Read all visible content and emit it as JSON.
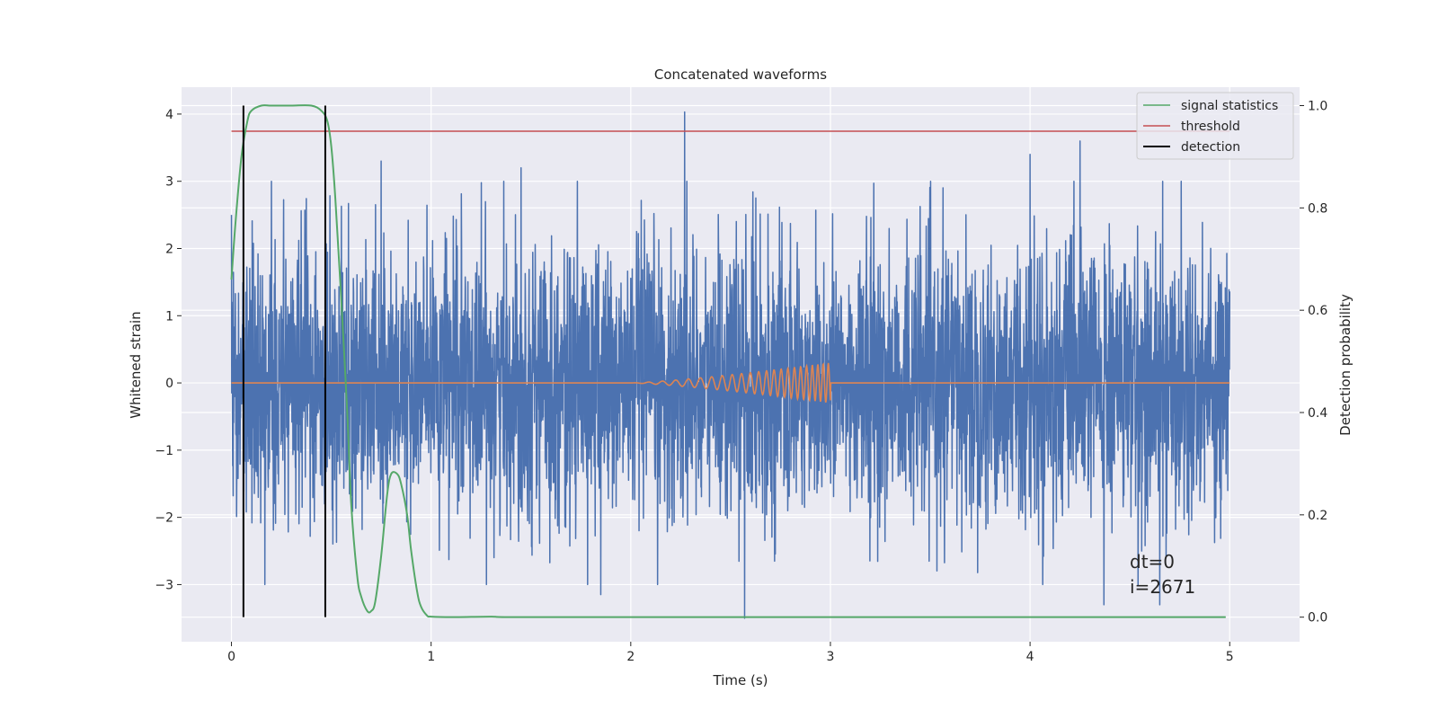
{
  "chart_data": {
    "type": "line",
    "title": "Concatenated waveforms",
    "xlabel": "Time (s)",
    "ylabel": "Whitened strain",
    "ylabel_right": "Detection probability",
    "xlim": [
      -0.25,
      5.35
    ],
    "ylim": [
      -3.85,
      4.4
    ],
    "ylim_right": [
      -0.048,
      1.036
    ],
    "x_ticks": [
      0,
      1,
      2,
      3,
      4,
      5
    ],
    "x_tick_labels": [
      "0",
      "1",
      "2",
      "3",
      "4",
      "5"
    ],
    "y_ticks": [
      -3,
      -2,
      -1,
      0,
      1,
      2,
      3,
      4
    ],
    "y_tick_labels": [
      "−3",
      "−2",
      "−1",
      "0",
      "1",
      "2",
      "3",
      "4"
    ],
    "y_right_ticks": [
      0.0,
      0.2,
      0.4,
      0.6,
      0.8,
      1.0
    ],
    "y_right_tick_labels": [
      "0.0",
      "0.2",
      "0.4",
      "0.6",
      "0.8",
      "1.0"
    ],
    "grid": true,
    "legend_position": "top-right",
    "colors": {
      "background": "#eaeaf2",
      "grid": "#ffffff",
      "strain": "#4c72b0",
      "waveform": "#dd8452",
      "signal_statistics": "#55a868",
      "threshold": "#c44e52",
      "detection": "#000000"
    },
    "noisy_strain": {
      "x_range": [
        0,
        5
      ],
      "samples": 4096,
      "std": 1.0,
      "spikes": [
        {
          "x": 0.0,
          "y": 2.5
        },
        {
          "x": 0.47,
          "y": 2.55
        },
        {
          "x": 0.75,
          "y": 3.3
        },
        {
          "x": 1.45,
          "y": 3.2
        },
        {
          "x": 2.27,
          "y": 4.03
        },
        {
          "x": 2.57,
          "y": -3.5
        },
        {
          "x": 1.85,
          "y": -3.15
        },
        {
          "x": 4.25,
          "y": 3.6
        },
        {
          "x": 4.37,
          "y": -3.3
        },
        {
          "x": 4.65,
          "y": -3.3
        },
        {
          "x": 4.0,
          "y": 3.4
        }
      ]
    },
    "injected_waveform": {
      "x_start": 2.0,
      "x_end": 3.0,
      "max_amplitude": 0.3,
      "f_start_hz": 14,
      "f_end_hz": 40
    },
    "signal_statistics": {
      "name": "signal statistics",
      "x": [
        0.0,
        0.02,
        0.05,
        0.08,
        0.1,
        0.15,
        0.2,
        0.3,
        0.4,
        0.45,
        0.48,
        0.5,
        0.52,
        0.55,
        0.58,
        0.6,
        0.63,
        0.65,
        0.68,
        0.7,
        0.72,
        0.75,
        0.78,
        0.8,
        0.83,
        0.85,
        0.88,
        0.9,
        0.93,
        0.95,
        0.98,
        1.0,
        1.1,
        1.3,
        1.4,
        2.0,
        3.0,
        4.0,
        4.98
      ],
      "y": [
        0.66,
        0.77,
        0.9,
        0.97,
        0.99,
        1.0,
        1.0,
        1.0,
        1.0,
        0.99,
        0.97,
        0.92,
        0.82,
        0.62,
        0.4,
        0.22,
        0.08,
        0.04,
        0.012,
        0.012,
        0.03,
        0.12,
        0.24,
        0.28,
        0.28,
        0.26,
        0.2,
        0.13,
        0.05,
        0.02,
        0.003,
        0.001,
        0.0,
        0.001,
        0.0,
        0.0,
        0.0,
        0.0,
        0.0
      ]
    },
    "threshold": {
      "name": "threshold",
      "value": 0.95,
      "x_range": [
        0,
        5
      ]
    },
    "detection": {
      "name": "detection",
      "x": [
        0.06,
        0.47
      ],
      "y_range": [
        0.0,
        1.0
      ]
    },
    "legend": [
      "signal statistics",
      "threshold",
      "detection"
    ],
    "annotation": {
      "line1": "dt=0",
      "line2": "i=2671",
      "x": 4.5,
      "y_right": 0.115
    }
  }
}
